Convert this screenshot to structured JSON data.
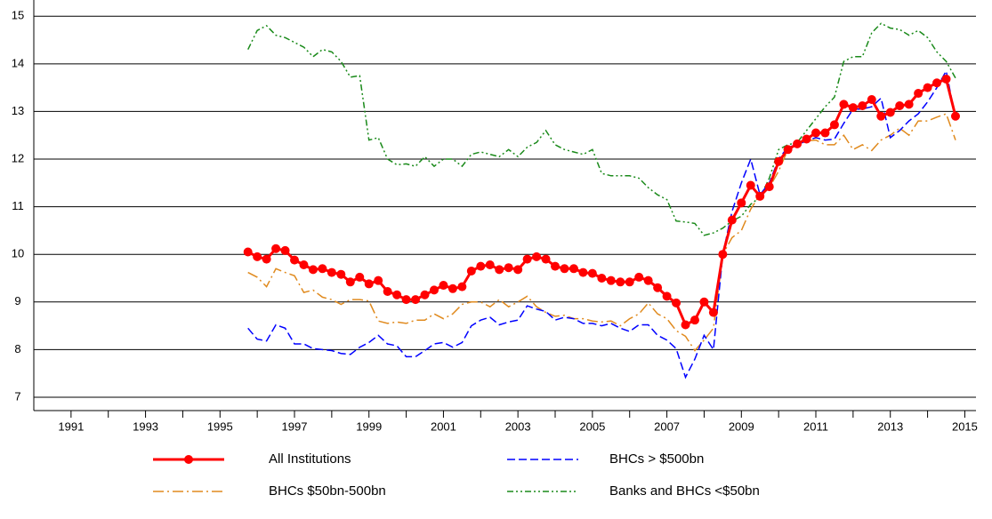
{
  "chart_data": {
    "type": "line",
    "x": [
      1995.75,
      1996,
      1996.25,
      1996.5,
      1996.75,
      1997,
      1997.25,
      1997.5,
      1997.75,
      1998,
      1998.25,
      1998.5,
      1998.75,
      1999,
      1999.25,
      1999.5,
      1999.75,
      2000,
      2000.25,
      2000.5,
      2000.75,
      2001,
      2001.25,
      2001.5,
      2001.75,
      2002,
      2002.25,
      2002.5,
      2002.75,
      2003,
      2003.25,
      2003.5,
      2003.75,
      2004,
      2004.25,
      2004.5,
      2004.75,
      2005,
      2005.25,
      2005.5,
      2005.75,
      2006,
      2006.25,
      2006.5,
      2006.75,
      2007,
      2007.25,
      2007.5,
      2007.75,
      2008,
      2008.25,
      2008.5,
      2008.75,
      2009,
      2009.25,
      2009.5,
      2009.75,
      2010,
      2010.25,
      2010.5,
      2010.75,
      2011,
      2011.25,
      2011.5,
      2011.75,
      2012,
      2012.25,
      2012.5,
      2012.75,
      2013,
      2013.25,
      2013.5,
      2013.75,
      2014,
      2014.25,
      2014.5,
      2014.75
    ],
    "series": [
      {
        "name": "All Institutions",
        "color": "#ff0000",
        "dash": "solid",
        "marker": "circle",
        "values": [
          10.05,
          9.95,
          9.9,
          10.12,
          10.08,
          9.88,
          9.78,
          9.68,
          9.7,
          9.62,
          9.58,
          9.42,
          9.52,
          9.38,
          9.45,
          9.22,
          9.15,
          9.05,
          9.05,
          9.15,
          9.25,
          9.35,
          9.28,
          9.32,
          9.65,
          9.75,
          9.78,
          9.68,
          9.72,
          9.68,
          9.9,
          9.95,
          9.9,
          9.75,
          9.7,
          9.7,
          9.62,
          9.6,
          9.5,
          9.45,
          9.42,
          9.42,
          9.52,
          9.45,
          9.3,
          9.12,
          8.98,
          8.52,
          8.62,
          9.0,
          8.78,
          10.0,
          10.72,
          11.08,
          11.45,
          11.22,
          11.42,
          11.95,
          12.2,
          12.32,
          12.42,
          12.55,
          12.55,
          12.72,
          13.15,
          13.08,
          13.12,
          13.25,
          12.9,
          12.98,
          13.12,
          13.15,
          13.38,
          13.5,
          13.6,
          13.68,
          12.9
        ]
      },
      {
        "name": "BHCs > $500bn",
        "color": "#0000ff",
        "dash": "dashed",
        "values": [
          8.45,
          8.22,
          8.18,
          8.52,
          8.45,
          8.12,
          8.12,
          8.02,
          8.0,
          7.98,
          7.92,
          7.9,
          8.05,
          8.15,
          8.3,
          8.12,
          8.08,
          7.85,
          7.85,
          7.98,
          8.12,
          8.15,
          8.05,
          8.15,
          8.5,
          8.62,
          8.68,
          8.52,
          8.58,
          8.62,
          8.92,
          8.85,
          8.8,
          8.62,
          8.68,
          8.65,
          8.55,
          8.55,
          8.5,
          8.55,
          8.45,
          8.38,
          8.52,
          8.52,
          8.3,
          8.2,
          8.02,
          7.42,
          7.8,
          8.3,
          8.0,
          10.0,
          10.9,
          11.5,
          12.0,
          11.25,
          11.5,
          12.0,
          12.25,
          12.3,
          12.38,
          12.45,
          12.4,
          12.42,
          12.75,
          13.05,
          13.05,
          13.1,
          13.28,
          12.45,
          12.6,
          12.8,
          12.95,
          13.2,
          13.5,
          13.85,
          12.85
        ]
      },
      {
        "name": "BHCs $50bn-500bn",
        "color": "#e08a1e",
        "dash": "dashdot",
        "values": [
          9.62,
          9.52,
          9.32,
          9.7,
          9.62,
          9.55,
          9.2,
          9.25,
          9.1,
          9.05,
          8.95,
          9.05,
          9.05,
          9.02,
          8.6,
          8.55,
          8.58,
          8.55,
          8.62,
          8.62,
          8.75,
          8.65,
          8.75,
          8.95,
          9.0,
          9.0,
          8.9,
          9.05,
          8.9,
          9.0,
          9.12,
          8.9,
          8.78,
          8.7,
          8.72,
          8.65,
          8.65,
          8.6,
          8.58,
          8.6,
          8.5,
          8.65,
          8.75,
          8.98,
          8.75,
          8.65,
          8.4,
          8.28,
          7.98,
          8.2,
          8.45,
          10.0,
          10.35,
          10.5,
          10.95,
          11.25,
          11.4,
          11.75,
          12.2,
          12.35,
          12.38,
          12.4,
          12.3,
          12.3,
          12.5,
          12.2,
          12.3,
          12.18,
          12.4,
          12.5,
          12.65,
          12.5,
          12.8,
          12.8,
          12.88,
          12.95,
          12.4
        ]
      },
      {
        "name": "Banks and BHCs <$50bn",
        "color": "#1a8a1a",
        "dash": "dashdotdot",
        "values": [
          14.3,
          14.7,
          14.8,
          14.6,
          14.55,
          14.45,
          14.35,
          14.15,
          14.3,
          14.25,
          14.05,
          13.72,
          13.75,
          12.4,
          12.45,
          12.0,
          11.88,
          11.9,
          11.85,
          12.05,
          11.85,
          12.0,
          12.0,
          11.85,
          12.1,
          12.15,
          12.1,
          12.05,
          12.2,
          12.05,
          12.25,
          12.35,
          12.6,
          12.3,
          12.2,
          12.15,
          12.1,
          12.2,
          11.7,
          11.65,
          11.65,
          11.65,
          11.6,
          11.4,
          11.25,
          11.15,
          10.7,
          10.68,
          10.65,
          10.4,
          10.45,
          10.55,
          10.7,
          10.8,
          11.05,
          11.2,
          11.6,
          12.2,
          12.3,
          12.35,
          12.6,
          12.85,
          13.1,
          13.3,
          14.05,
          14.15,
          14.15,
          14.65,
          14.85,
          14.75,
          14.72,
          14.6,
          14.7,
          14.55,
          14.25,
          14.05,
          13.7
        ]
      }
    ],
    "xlim": [
      1990,
      2015.3
    ],
    "xticks": [
      1991,
      1993,
      1995,
      1997,
      1999,
      2001,
      2003,
      2005,
      2007,
      2009,
      2011,
      2013,
      2015
    ],
    "xminorticks": [
      1992,
      1994,
      1996,
      1998,
      2000,
      2002,
      2004,
      2006,
      2008,
      2010,
      2012,
      2014
    ],
    "ylim": [
      6.72,
      15.34
    ],
    "yticks": [
      7,
      8,
      9,
      10,
      11,
      12,
      13,
      14,
      15
    ],
    "grid": true
  }
}
